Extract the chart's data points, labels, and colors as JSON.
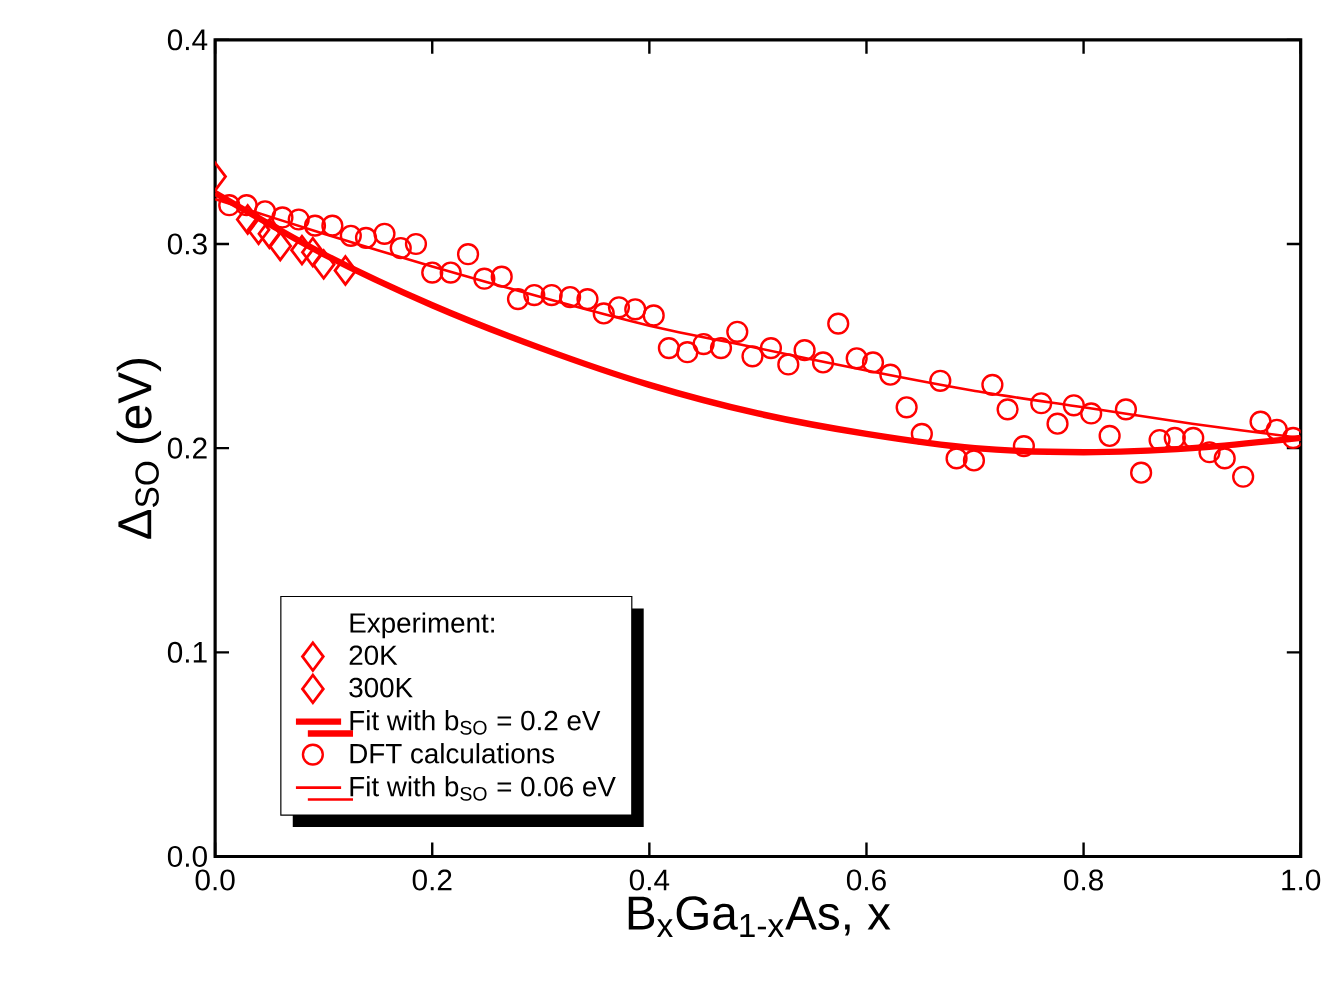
{
  "chart_data": {
    "type": "scatter",
    "xlabel": "B$_{x}$Ga$_{1-x}$As, x",
    "ylabel": "Δ$_{SO}$ (eV)",
    "legend_title": "Experiment:",
    "legend": "bottom left",
    "xlim": [
      0,
      1
    ],
    "ylim": [
      0,
      0.4
    ],
    "xticks": [
      {
        "value": 0,
        "label": "0.0"
      },
      {
        "value": 0.2,
        "label": "0.2"
      },
      {
        "value": 0.4,
        "label": "0.4"
      },
      {
        "value": 0.6,
        "label": "0.6"
      },
      {
        "value": 0.8,
        "label": "0.8"
      },
      {
        "value": 1,
        "label": "1.0"
      }
    ],
    "yticks": [
      {
        "value": 0,
        "label": "0.0"
      },
      {
        "value": 0.1,
        "label": "0.1"
      },
      {
        "value": 0.2,
        "label": "0.2"
      },
      {
        "value": 0.3,
        "label": "0.3"
      },
      {
        "value": 0.4,
        "label": "0.4"
      }
    ],
    "series": [
      {
        "name": "20K",
        "marker": "diamond",
        "color": "#ff0000",
        "x": [
          0,
          0.03,
          0.05,
          0.09,
          0.1
        ],
        "values": [
          0.333,
          0.312,
          0.305,
          0.296,
          0.29
        ]
      },
      {
        "name": "300K",
        "marker": "diamond",
        "color": "#ff0000",
        "x": [
          0.04,
          0.06,
          0.08,
          0.12
        ],
        "values": [
          0.307,
          0.299,
          0.297,
          0.287
        ]
      },
      {
        "name": "Fit with b$_{SO}$ = 0.2 eV",
        "type": "line",
        "marker": "none",
        "color": "#ff0000",
        "x": [
          0,
          0.1,
          0.2,
          0.3,
          0.4,
          0.5,
          0.6,
          0.7,
          0.8,
          0.9,
          1
        ],
        "values": [
          0.325,
          0.295,
          0.27,
          0.249,
          0.231,
          0.217,
          0.207,
          0.2,
          0.198,
          0.2,
          0.205
        ]
      },
      {
        "name": "DFT calculations",
        "marker": "circle",
        "color": "#ff0000",
        "x": [
          0.013,
          0.029,
          0.046,
          0.062,
          0.077,
          0.092,
          0.108,
          0.125,
          0.139,
          0.156,
          0.171,
          0.185,
          0.2,
          0.217,
          0.233,
          0.248,
          0.264,
          0.279,
          0.294,
          0.31,
          0.327,
          0.343,
          0.358,
          0.372,
          0.387,
          0.404,
          0.418,
          0.435,
          0.45,
          0.466,
          0.481,
          0.495,
          0.512,
          0.528,
          0.543,
          0.56,
          0.574,
          0.591,
          0.606,
          0.622,
          0.637,
          0.651,
          0.668,
          0.683,
          0.699,
          0.716,
          0.73,
          0.745,
          0.761,
          0.776,
          0.791,
          0.807,
          0.824,
          0.839,
          0.853,
          0.87,
          0.884,
          0.901,
          0.916,
          0.93,
          0.947,
          0.963,
          0.978,
          0.993
        ],
        "values": [
          0.319,
          0.319,
          0.316,
          0.313,
          0.312,
          0.309,
          0.309,
          0.304,
          0.303,
          0.305,
          0.298,
          0.3,
          0.286,
          0.286,
          0.295,
          0.283,
          0.284,
          0.273,
          0.275,
          0.275,
          0.274,
          0.273,
          0.266,
          0.269,
          0.268,
          0.265,
          0.249,
          0.247,
          0.251,
          0.249,
          0.257,
          0.245,
          0.249,
          0.241,
          0.248,
          0.242,
          0.261,
          0.244,
          0.242,
          0.236,
          0.22,
          0.207,
          0.233,
          0.195,
          0.194,
          0.231,
          0.219,
          0.201,
          0.222,
          0.212,
          0.221,
          0.217,
          0.206,
          0.219,
          0.188,
          0.204,
          0.205,
          0.205,
          0.198,
          0.195,
          0.186,
          0.213,
          0.209,
          0.205
        ]
      },
      {
        "name": "Fit with b$_{SO}$ = 0.06 eV",
        "type": "line",
        "marker": "none",
        "color": "#ff0000",
        "x": [
          0,
          0.1,
          0.2,
          0.3,
          0.4,
          0.5,
          0.6,
          0.7,
          0.8,
          0.9,
          1
        ],
        "values": [
          0.322,
          0.305,
          0.289,
          0.274,
          0.26,
          0.249,
          0.238,
          0.228,
          0.22,
          0.212,
          0.205
        ]
      }
    ]
  }
}
